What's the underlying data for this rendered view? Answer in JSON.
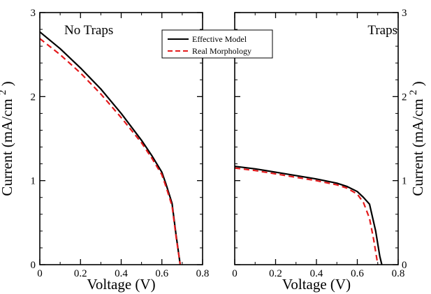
{
  "chart_data": [
    {
      "type": "line",
      "panel_label": "No Traps",
      "xlabel": "Voltage (V)",
      "ylabel": "Current (mA/cm",
      "ylabel_superscript": "2",
      "ylabel_close": ")",
      "ylabel_side": "left",
      "xlim": [
        0,
        0.8
      ],
      "ylim": [
        0,
        3
      ],
      "xticks": [
        0,
        0.2,
        0.4,
        0.6,
        0.8
      ],
      "xtick_labels": [
        "0",
        "0.2",
        "0.4",
        "0.6",
        "0.8"
      ],
      "yticks": [
        0,
        1,
        2,
        3
      ],
      "ytick_labels": [
        "0",
        "1",
        "2",
        "3"
      ],
      "grid": false,
      "series": [
        {
          "name": "Effective Model",
          "color": "#000000",
          "dash": "solid",
          "x": [
            0,
            0.1,
            0.2,
            0.3,
            0.4,
            0.5,
            0.55,
            0.6,
            0.62,
            0.65,
            0.67,
            0.69
          ],
          "y": [
            2.77,
            2.57,
            2.34,
            2.09,
            1.8,
            1.48,
            1.3,
            1.1,
            0.96,
            0.73,
            0.35,
            0
          ]
        },
        {
          "name": "Real Morphology",
          "color": "#e41a1c",
          "dash": "dashed",
          "x": [
            0,
            0.1,
            0.2,
            0.3,
            0.4,
            0.5,
            0.55,
            0.6,
            0.62,
            0.65,
            0.67,
            0.69
          ],
          "y": [
            2.69,
            2.5,
            2.28,
            2.03,
            1.75,
            1.45,
            1.27,
            1.07,
            0.93,
            0.7,
            0.33,
            0
          ]
        }
      ]
    },
    {
      "type": "line",
      "panel_label": "Traps",
      "xlabel": "Voltage (V)",
      "ylabel": "Current (mA/cm",
      "ylabel_superscript": "2",
      "ylabel_close": ")",
      "ylabel_side": "right",
      "xlim": [
        0,
        0.8
      ],
      "ylim": [
        0,
        3
      ],
      "xticks": [
        0,
        0.2,
        0.4,
        0.6,
        0.8
      ],
      "xtick_labels": [
        "0",
        "0.2",
        "0.4",
        "0.6",
        "0.8"
      ],
      "yticks": [
        0,
        1,
        2,
        3
      ],
      "ytick_labels": [
        "0",
        "1",
        "2",
        "3"
      ],
      "grid": false,
      "series": [
        {
          "name": "Effective Model",
          "color": "#000000",
          "dash": "solid",
          "x": [
            0,
            0.1,
            0.2,
            0.3,
            0.4,
            0.5,
            0.55,
            0.6,
            0.63,
            0.66,
            0.69,
            0.71,
            0.72
          ],
          "y": [
            1.17,
            1.14,
            1.1,
            1.06,
            1.02,
            0.97,
            0.93,
            0.87,
            0.8,
            0.72,
            0.4,
            0.1,
            0
          ]
        },
        {
          "name": "Real Morphology",
          "color": "#e41a1c",
          "dash": "dashed",
          "x": [
            0,
            0.1,
            0.2,
            0.3,
            0.4,
            0.5,
            0.55,
            0.6,
            0.63,
            0.66,
            0.68,
            0.7
          ],
          "y": [
            1.15,
            1.12,
            1.08,
            1.04,
            1.0,
            0.95,
            0.91,
            0.84,
            0.74,
            0.55,
            0.3,
            0
          ]
        }
      ]
    }
  ],
  "legend": {
    "position": "top-center",
    "entries": [
      {
        "label": "Effective Model",
        "color": "#000000",
        "dash": "solid"
      },
      {
        "label": "Real Morphology",
        "color": "#e41a1c",
        "dash": "dashed"
      }
    ]
  }
}
